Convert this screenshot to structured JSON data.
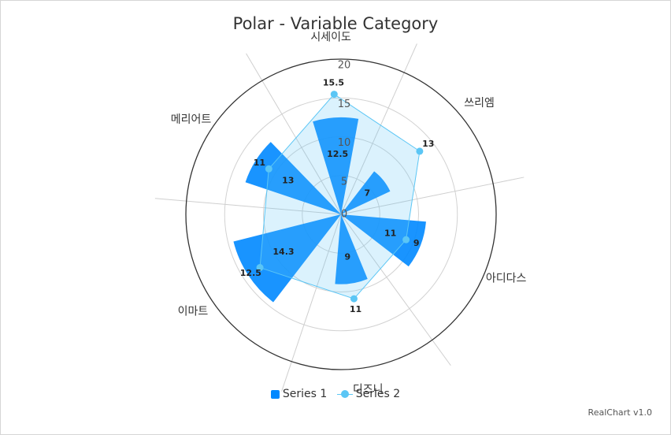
{
  "chart_data": {
    "type": "polar",
    "title": "Polar - Variable Category",
    "categories": [
      "쓰리엠",
      "아디다스",
      "디즈니",
      "이마트",
      "메리어트",
      "시세이도"
    ],
    "category_weights": [
      1,
      1.2,
      1,
      1.4,
      1,
      1
    ],
    "yticks": [
      0,
      5,
      10,
      15,
      20
    ],
    "ylim": [
      0,
      20
    ],
    "series": [
      {
        "name": "Series 1",
        "type": "bar",
        "color": "#0088ff",
        "values": [
          7,
          11,
          9,
          14.3,
          13,
          12.5
        ]
      },
      {
        "name": "Series 2",
        "type": "line",
        "color": "#5bc6f5",
        "values": [
          13,
          9,
          11,
          12.5,
          11,
          15.5
        ]
      }
    ],
    "legend": "bottom"
  },
  "credits": "RealChart v1.0"
}
